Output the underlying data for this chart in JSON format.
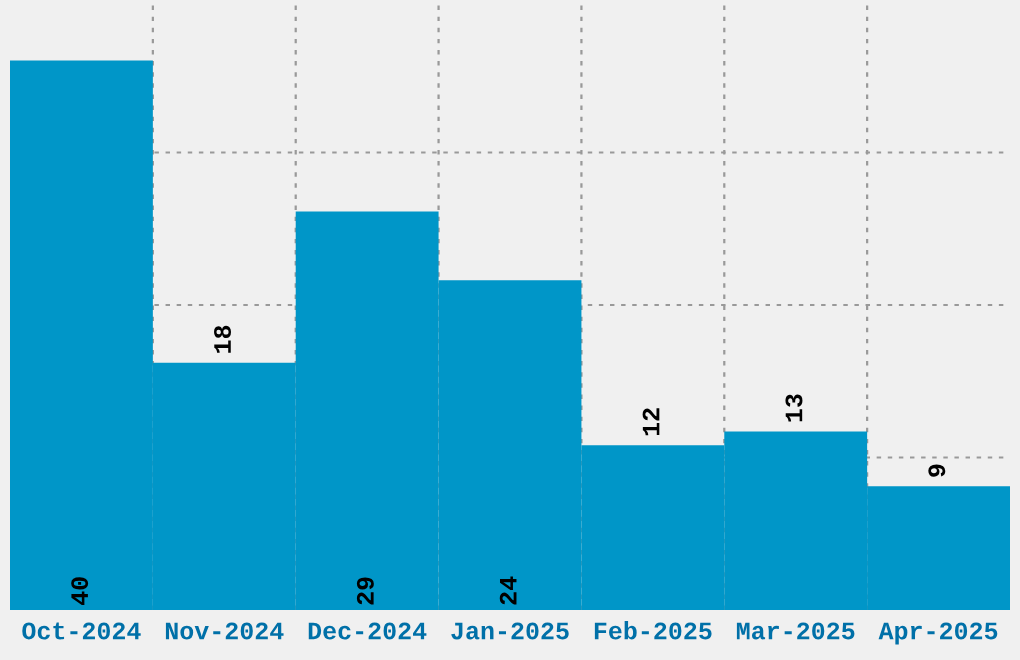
{
  "chart_data": {
    "type": "bar",
    "categories": [
      "Oct-2024",
      "Nov-2024",
      "Dec-2024",
      "Jan-2025",
      "Feb-2025",
      "Mar-2025",
      "Apr-2025"
    ],
    "values": [
      40,
      18,
      29,
      24,
      12,
      13,
      9
    ],
    "color": "#0096c8",
    "ylim": [
      0,
      44.4
    ],
    "yticks": [
      {
        "value": 11.1,
        "label": null
      },
      {
        "value": 22.2,
        "label": null
      },
      {
        "value": 33.3,
        "label": null
      }
    ],
    "tick_labels": "x",
    "grid": true,
    "data_labels": true
  }
}
